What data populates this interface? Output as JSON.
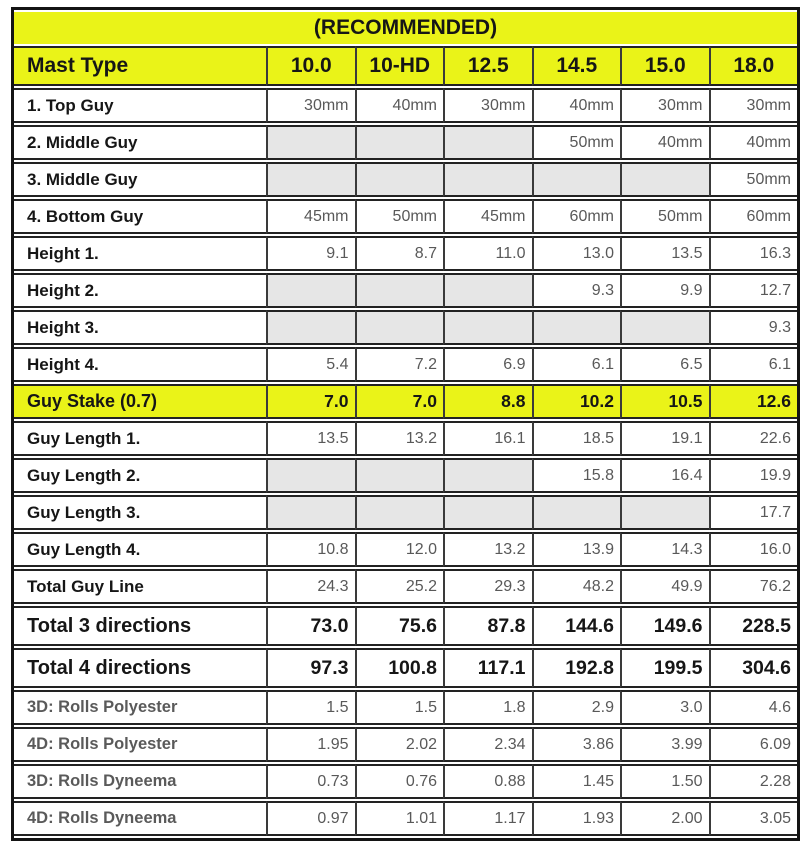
{
  "title": "(RECOMMENDED)",
  "colors": {
    "highlight_yellow": "#eaf318",
    "empty_cell_gray": "#e6e6e6",
    "value_text": "#595959",
    "label_text": "#161616",
    "border": "#141414"
  },
  "chart_data": {
    "type": "table",
    "title": "(RECOMMENDED)",
    "header_label": "Mast Type",
    "columns": [
      "10.0",
      "10-HD",
      "12.5",
      "14.5",
      "15.0",
      "18.0"
    ],
    "rows": [
      {
        "label": "1. Top Guy",
        "values": [
          "30mm",
          "40mm",
          "30mm",
          "40mm",
          "30mm",
          "30mm"
        ],
        "kind": "normal"
      },
      {
        "label": "2. Middle Guy",
        "values": [
          "",
          "",
          "",
          "50mm",
          "40mm",
          "40mm"
        ],
        "kind": "normal"
      },
      {
        "label": "3. Middle Guy",
        "values": [
          "",
          "",
          "",
          "",
          "",
          "50mm"
        ],
        "kind": "normal"
      },
      {
        "label": "4. Bottom Guy",
        "values": [
          "45mm",
          "50mm",
          "45mm",
          "60mm",
          "50mm",
          "60mm"
        ],
        "kind": "normal"
      },
      {
        "label": "Height 1.",
        "values": [
          "9.1",
          "8.7",
          "11.0",
          "13.0",
          "13.5",
          "16.3"
        ],
        "kind": "normal"
      },
      {
        "label": "Height 2.",
        "values": [
          "",
          "",
          "",
          "9.3",
          "9.9",
          "12.7"
        ],
        "kind": "normal"
      },
      {
        "label": "Height 3.",
        "values": [
          "",
          "",
          "",
          "",
          "",
          "9.3"
        ],
        "kind": "normal"
      },
      {
        "label": "Height 4.",
        "values": [
          "5.4",
          "7.2",
          "6.9",
          "6.1",
          "6.5",
          "6.1"
        ],
        "kind": "normal"
      },
      {
        "label": "Guy Stake (0.7)",
        "values": [
          "7.0",
          "7.0",
          "8.8",
          "10.2",
          "10.5",
          "12.6"
        ],
        "kind": "highlight"
      },
      {
        "label": "Guy Length 1.",
        "values": [
          "13.5",
          "13.2",
          "16.1",
          "18.5",
          "19.1",
          "22.6"
        ],
        "kind": "normal"
      },
      {
        "label": "Guy Length 2.",
        "values": [
          "",
          "",
          "",
          "15.8",
          "16.4",
          "19.9"
        ],
        "kind": "normal"
      },
      {
        "label": "Guy Length 3.",
        "values": [
          "",
          "",
          "",
          "",
          "",
          "17.7"
        ],
        "kind": "normal"
      },
      {
        "label": "Guy Length 4.",
        "values": [
          "10.8",
          "12.0",
          "13.2",
          "13.9",
          "14.3",
          "16.0"
        ],
        "kind": "normal"
      },
      {
        "label": "Total Guy Line",
        "values": [
          "24.3",
          "25.2",
          "29.3",
          "48.2",
          "49.9",
          "76.2"
        ],
        "kind": "normal"
      },
      {
        "label": "Total 3 directions",
        "values": [
          "73.0",
          "75.6",
          "87.8",
          "144.6",
          "149.6",
          "228.5"
        ],
        "kind": "total"
      },
      {
        "label": "Total 4 directions",
        "values": [
          "97.3",
          "100.8",
          "117.1",
          "192.8",
          "199.5",
          "304.6"
        ],
        "kind": "total"
      },
      {
        "label": "3D: Rolls Polyester",
        "values": [
          "1.5",
          "1.5",
          "1.8",
          "2.9",
          "3.0",
          "4.6"
        ],
        "kind": "muted"
      },
      {
        "label": "4D: Rolls Polyester",
        "values": [
          "1.95",
          "2.02",
          "2.34",
          "3.86",
          "3.99",
          "6.09"
        ],
        "kind": "muted"
      },
      {
        "label": "3D: Rolls Dyneema",
        "values": [
          "0.73",
          "0.76",
          "0.88",
          "1.45",
          "1.50",
          "2.28"
        ],
        "kind": "muted"
      },
      {
        "label": "4D: Rolls Dyneema",
        "values": [
          "0.97",
          "1.01",
          "1.17",
          "1.93",
          "2.00",
          "3.05"
        ],
        "kind": "muted"
      }
    ]
  }
}
